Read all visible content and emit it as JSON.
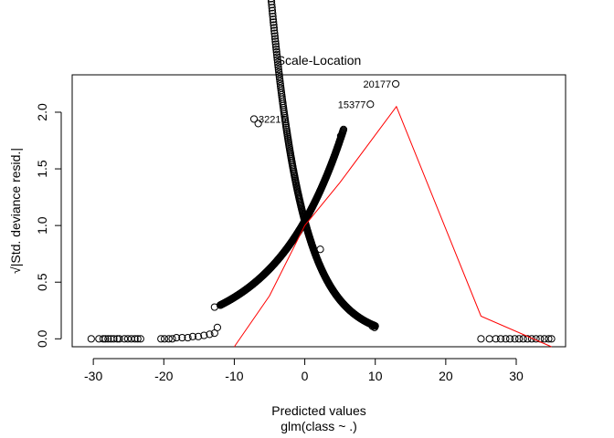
{
  "chart_data": {
    "type": "scatter",
    "title": "Scale-Location",
    "xlabel": "Predicted values",
    "xlabel2": "glm(class ~ .)",
    "ylabel": "√|Std. deviance resid.|",
    "xlim": [
      -33,
      37
    ],
    "ylim": [
      -0.07,
      2.33
    ],
    "x_ticks": [
      -30,
      -20,
      -10,
      0,
      10,
      20,
      30
    ],
    "y_ticks": [
      0.0,
      0.5,
      1.0,
      1.5,
      2.0
    ],
    "y_tick_labels": [
      "0.0",
      "0.5",
      "1.0",
      "1.5",
      "2.0"
    ],
    "grid": false,
    "legend": "none",
    "point_color": "#000000",
    "smooth_color": "#ff0000",
    "series": [
      {
        "values": [
          {
            "x": -30.3,
            "y": 0.0
          },
          {
            "x": -29.2,
            "y": 0.0
          },
          {
            "x": -28.6,
            "y": 0.0
          },
          {
            "x": -28.3,
            "y": 0.0
          },
          {
            "x": -27.9,
            "y": 0.0
          },
          {
            "x": -27.5,
            "y": 0.0
          },
          {
            "x": -27.1,
            "y": 0.0
          },
          {
            "x": -26.6,
            "y": 0.0
          },
          {
            "x": -26.3,
            "y": 0.0
          },
          {
            "x": -25.6,
            "y": 0.0
          },
          {
            "x": -25.1,
            "y": 0.0
          },
          {
            "x": -24.6,
            "y": 0.0
          },
          {
            "x": -24.1,
            "y": 0.0
          },
          {
            "x": -23.7,
            "y": 0.0
          },
          {
            "x": -23.3,
            "y": 0.0
          },
          {
            "x": -20.4,
            "y": 0.0
          },
          {
            "x": -19.9,
            "y": 0.0
          },
          {
            "x": -19.3,
            "y": 0.0
          },
          {
            "x": -18.8,
            "y": 0.0
          },
          {
            "x": -18.2,
            "y": 0.01
          },
          {
            "x": -17.4,
            "y": 0.01
          },
          {
            "x": -16.6,
            "y": 0.01
          },
          {
            "x": -15.9,
            "y": 0.02
          },
          {
            "x": -15.1,
            "y": 0.02
          },
          {
            "x": -14.3,
            "y": 0.03
          },
          {
            "x": -13.5,
            "y": 0.04
          },
          {
            "x": -12.8,
            "y": 0.05
          },
          {
            "x": -12.4,
            "y": 0.1
          },
          {
            "x": -12.8,
            "y": 0.28
          },
          {
            "x": -7.2,
            "y": 1.94
          },
          {
            "x": -6.6,
            "y": 1.9
          },
          {
            "x": 2.2,
            "y": 0.79
          },
          {
            "x": 5.3,
            "y": 1.81
          },
          {
            "x": 5.1,
            "y": 1.79
          },
          {
            "x": 9.6,
            "y": 0.11
          },
          {
            "x": 9.9,
            "y": 0.1
          },
          {
            "x": 12.9,
            "y": 2.25
          },
          {
            "x": 9.3,
            "y": 2.07
          },
          {
            "x": 25.0,
            "y": 0.0
          },
          {
            "x": 26.2,
            "y": 0.0
          },
          {
            "x": 27.1,
            "y": 0.0
          },
          {
            "x": 27.8,
            "y": 0.0
          },
          {
            "x": 28.5,
            "y": 0.0
          },
          {
            "x": 29.1,
            "y": 0.0
          },
          {
            "x": 29.8,
            "y": 0.0
          },
          {
            "x": 30.4,
            "y": 0.0
          },
          {
            "x": 31.0,
            "y": 0.0
          },
          {
            "x": 31.6,
            "y": 0.0
          },
          {
            "x": 32.2,
            "y": 0.0
          },
          {
            "x": 32.8,
            "y": 0.0
          },
          {
            "x": 33.4,
            "y": 0.0
          },
          {
            "x": 34.0,
            "y": 0.0
          },
          {
            "x": 34.6,
            "y": 0.0
          },
          {
            "x": 35.0,
            "y": 0.0
          }
        ],
        "dense_curves": [
          {
            "shape": "exp_increasing",
            "x_from": -12.0,
            "x_to": 5.5,
            "y_at_zero": 1.04
          },
          {
            "shape": "exp_decreasing",
            "x_from": -7.0,
            "x_to": 10.0,
            "y_at_zero": 1.04
          }
        ]
      }
    ],
    "smooth_line": [
      {
        "x": -10.0,
        "y": -0.07
      },
      {
        "x": -5.0,
        "y": 0.38
      },
      {
        "x": 0.0,
        "y": 1.0
      },
      {
        "x": 5.0,
        "y": 1.38
      },
      {
        "x": 13.0,
        "y": 2.05
      },
      {
        "x": 25.0,
        "y": 0.2
      },
      {
        "x": 35.0,
        "y": -0.07
      }
    ],
    "annotations": [
      {
        "text": "20177",
        "x": 12.9,
        "y": 2.25,
        "side": "left"
      },
      {
        "text": "15377",
        "x": 9.3,
        "y": 2.07,
        "side": "left"
      },
      {
        "text": "32215",
        "x": -7.2,
        "y": 1.94,
        "side": "right"
      }
    ]
  }
}
